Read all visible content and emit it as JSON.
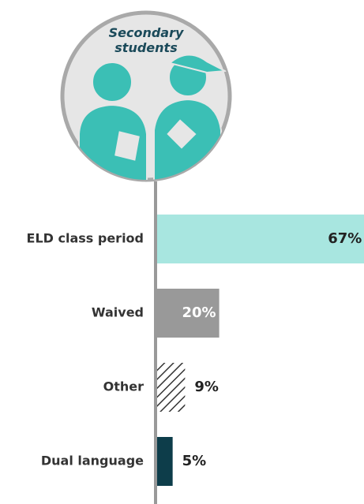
{
  "chart_data": {
    "type": "bar",
    "orientation": "horizontal",
    "title": "Secondary students",
    "categories": [
      "ELD class period",
      "Waived",
      "Other",
      "Dual language"
    ],
    "values": [
      67,
      20,
      9,
      5
    ],
    "value_labels": [
      "67%",
      "20%",
      "9%",
      "5%"
    ],
    "colors": [
      "#a8e6e0",
      "#999999",
      "#333333",
      "#0d3d4a"
    ],
    "hatched": [
      false,
      false,
      true,
      false
    ],
    "label_colors": [
      "#222222",
      "#ffffff",
      "#222222",
      "#222222"
    ],
    "label_inside": [
      true,
      true,
      false,
      false
    ]
  }
}
